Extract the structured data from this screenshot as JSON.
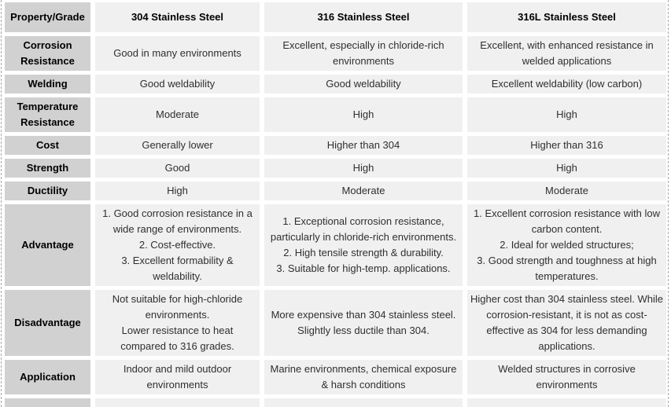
{
  "colors": {
    "label_background": "#d1d1d1",
    "cell_background": "#f0f0f0",
    "text": "#2f2f2f",
    "header_text": "#000000",
    "dashed_edge": "#9fa8b2"
  },
  "table": {
    "corner_label": "Property/Grade",
    "columns": [
      "304 Stainless Steel",
      "316 Stainless Steel",
      "316L Stainless Steel"
    ],
    "rows": [
      {
        "label": "Corrosion Resistance",
        "cells": [
          [
            "Good in many environments"
          ],
          [
            "Excellent, especially in chloride-rich environments"
          ],
          [
            "Excellent, with enhanced resistance in welded applications"
          ]
        ]
      },
      {
        "label": "Welding",
        "cells": [
          [
            "Good weldability"
          ],
          [
            "Good weldability"
          ],
          [
            "Excellent weldability (low carbon)"
          ]
        ]
      },
      {
        "label": "Temperature Resistance",
        "cells": [
          [
            "Moderate"
          ],
          [
            "High"
          ],
          [
            "High"
          ]
        ]
      },
      {
        "label": "Cost",
        "cells": [
          [
            "Generally lower"
          ],
          [
            "Higher than 304"
          ],
          [
            "Higher than 316"
          ]
        ]
      },
      {
        "label": "Strength",
        "cells": [
          [
            "Good"
          ],
          [
            "High"
          ],
          [
            "High"
          ]
        ]
      },
      {
        "label": "Ductility",
        "cells": [
          [
            "High"
          ],
          [
            "Moderate"
          ],
          [
            "Moderate"
          ]
        ]
      },
      {
        "label": "Advantage",
        "cells": [
          [
            "1.  Good corrosion resistance in a wide range of environments.",
            "2.  Cost-effective.",
            "3.  Excellent formability & weldability."
          ],
          [
            "1.  Exceptional corrosion resistance, particularly in chloride-rich environments.",
            "2.  High tensile strength & durability.",
            "3.  Suitable for high-temp. applications."
          ],
          [
            "1.  Excellent corrosion resistance with low carbon content.",
            "2.  Ideal for welded structures;",
            "3.  Good strength and toughness at high temperatures."
          ]
        ]
      },
      {
        "label": "Disadvantage",
        "cells": [
          [
            "Not suitable for high-chloride environments.",
            "Lower resistance to heat compared to 316 grades."
          ],
          [
            "More expensive than 304 stainless steel.",
            "Slightly less ductile than 304."
          ],
          [
            "Higher cost than 304 stainless steel. While corrosion-resistant, it is not as cost-effective as 304 for less demanding applications."
          ]
        ]
      },
      {
        "label": "Application",
        "cells": [
          [
            "Indoor and mild outdoor environments"
          ],
          [
            "Marine environments, chemical exposure & harsh conditions"
          ],
          [
            "Welded structures in corrosive environments"
          ]
        ]
      }
    ]
  }
}
